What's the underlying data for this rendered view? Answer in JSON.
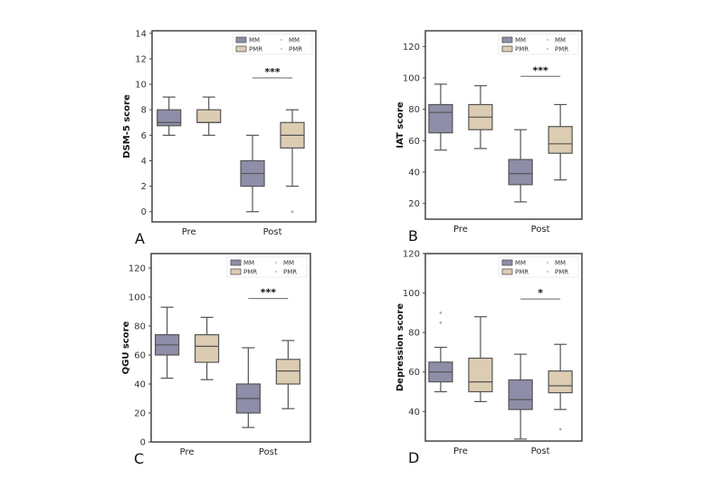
{
  "colors": {
    "MM": "#8e8ea9",
    "PMR": "#dccdb2",
    "edge": "#555555"
  },
  "chart_data": [
    {
      "type": "box",
      "panel_letter": "A",
      "ylabel": "DSM-5 score",
      "ylim": [
        -0.8,
        14.2
      ],
      "yticks": [
        0,
        2,
        4,
        6,
        8,
        10,
        12,
        14
      ],
      "categories": [
        "Pre",
        "Post"
      ],
      "legend": {
        "placement": "top-right",
        "box_entries": [
          "MM",
          "PMR"
        ],
        "dot_entries": [
          "MM",
          "PMR"
        ]
      },
      "series": [
        {
          "name": "MM",
          "boxes": [
            {
              "category": "Pre",
              "min": 6,
              "q1": 6.75,
              "median": 7,
              "q3": 8,
              "max": 9,
              "outliers": []
            },
            {
              "category": "Post",
              "min": 0,
              "q1": 2,
              "median": 3,
              "q3": 4,
              "max": 6,
              "outliers": []
            }
          ]
        },
        {
          "name": "PMR",
          "boxes": [
            {
              "category": "Pre",
              "min": 6,
              "q1": 7,
              "median": 7,
              "q3": 8,
              "max": 9,
              "outliers": []
            },
            {
              "category": "Post",
              "min": 2,
              "q1": 5,
              "median": 6,
              "q3": 7,
              "max": 8,
              "outliers": [
                0
              ]
            }
          ]
        }
      ],
      "significance": {
        "category": "Post",
        "label": "***",
        "y": 10.5
      }
    },
    {
      "type": "box",
      "panel_letter": "B",
      "ylabel": "IAT score",
      "ylim": [
        10,
        130
      ],
      "yticks": [
        20,
        40,
        60,
        80,
        100,
        120
      ],
      "categories": [
        "Pre",
        "Post"
      ],
      "legend": {
        "placement": "top-right",
        "box_entries": [
          "MM",
          "PMR"
        ],
        "dot_entries": [
          "MM",
          "PMR"
        ]
      },
      "series": [
        {
          "name": "MM",
          "boxes": [
            {
              "category": "Pre",
              "min": 54,
              "q1": 65,
              "median": 78,
              "q3": 83,
              "max": 96,
              "outliers": []
            },
            {
              "category": "Post",
              "min": 21,
              "q1": 32,
              "median": 39,
              "q3": 48,
              "max": 67,
              "outliers": []
            }
          ]
        },
        {
          "name": "PMR",
          "boxes": [
            {
              "category": "Pre",
              "min": 55,
              "q1": 67,
              "median": 75,
              "q3": 83,
              "max": 95,
              "outliers": []
            },
            {
              "category": "Post",
              "min": 35,
              "q1": 52,
              "median": 58,
              "q3": 69,
              "max": 83,
              "outliers": []
            }
          ]
        }
      ],
      "significance": {
        "category": "Post",
        "label": "***",
        "y": 101
      }
    },
    {
      "type": "box",
      "panel_letter": "C",
      "ylabel": "QGU score",
      "ylim": [
        0,
        130
      ],
      "yticks": [
        0,
        20,
        40,
        60,
        80,
        100,
        120
      ],
      "categories": [
        "Pre",
        "Post"
      ],
      "legend": {
        "placement": "top-right",
        "box_entries": [
          "MM",
          "PMR"
        ],
        "dot_entries": [
          "MM",
          "PMR"
        ]
      },
      "series": [
        {
          "name": "MM",
          "boxes": [
            {
              "category": "Pre",
              "min": 44,
              "q1": 60,
              "median": 67,
              "q3": 74,
              "max": 93,
              "outliers": []
            },
            {
              "category": "Post",
              "min": 10,
              "q1": 20,
              "median": 30,
              "q3": 40,
              "max": 65,
              "outliers": []
            }
          ]
        },
        {
          "name": "PMR",
          "boxes": [
            {
              "category": "Pre",
              "min": 43,
              "q1": 55,
              "median": 66,
              "q3": 74,
              "max": 86,
              "outliers": []
            },
            {
              "category": "Post",
              "min": 23,
              "q1": 40,
              "median": 49,
              "q3": 57,
              "max": 70,
              "outliers": []
            }
          ]
        }
      ],
      "significance": {
        "category": "Post",
        "label": "***",
        "y": 99
      }
    },
    {
      "type": "box",
      "panel_letter": "D",
      "ylabel": "Depression score",
      "ylim": [
        25,
        120
      ],
      "yticks": [
        40,
        60,
        80,
        100,
        120
      ],
      "categories": [
        "Pre",
        "Post"
      ],
      "legend": {
        "placement": "top-right",
        "box_entries": [
          "MM",
          "PMR"
        ],
        "dot_entries": [
          "MM",
          "PMR"
        ]
      },
      "series": [
        {
          "name": "MM",
          "boxes": [
            {
              "category": "Pre",
              "min": 50,
              "q1": 55,
              "median": 60,
              "q3": 65,
              "max": 72.5,
              "outliers": [
                85,
                90
              ]
            },
            {
              "category": "Post",
              "min": 26,
              "q1": 41,
              "median": 46,
              "q3": 56,
              "max": 69,
              "outliers": []
            }
          ]
        },
        {
          "name": "PMR",
          "boxes": [
            {
              "category": "Pre",
              "min": 45,
              "q1": 50,
              "median": 55,
              "q3": 67,
              "max": 88,
              "outliers": []
            },
            {
              "category": "Post",
              "min": 41,
              "q1": 49.5,
              "median": 53,
              "q3": 60.5,
              "max": 74,
              "outliers": [
                31
              ]
            }
          ]
        }
      ],
      "significance": {
        "category": "Post",
        "label": "*",
        "y": 97
      }
    }
  ]
}
